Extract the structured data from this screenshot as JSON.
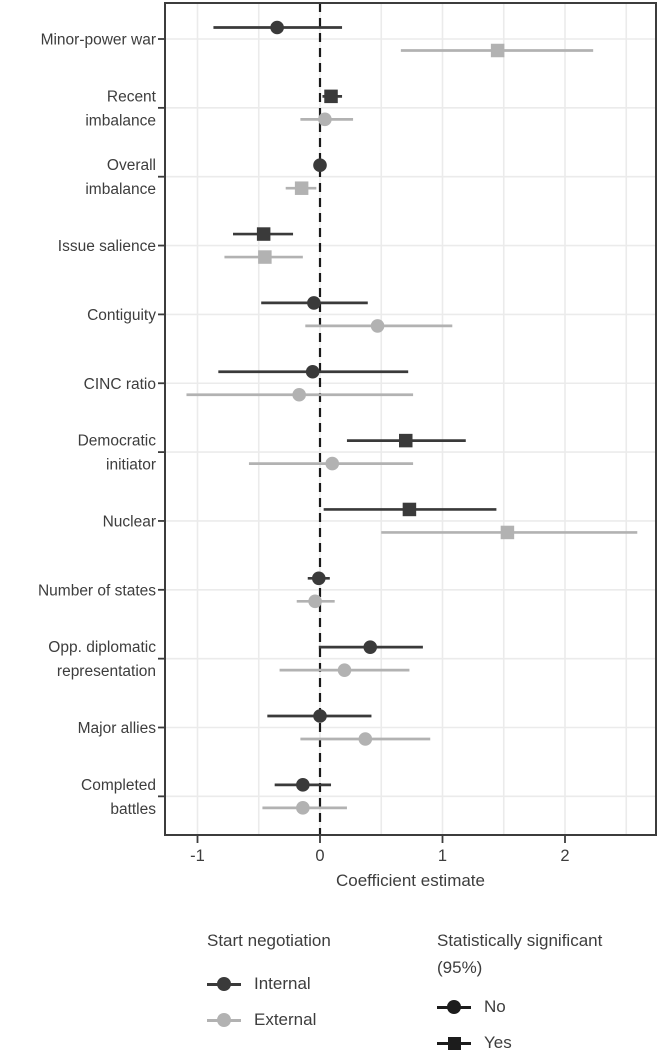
{
  "colors": {
    "internal": "#3a3a3a",
    "external": "#b2b2b2",
    "significant_black": "#1c1c1c",
    "gridline": "#ebebeb",
    "border": "#3c3c3c",
    "zero_line": "#1a1a1a",
    "text": "#3d3d3d"
  },
  "chart_data": {
    "type": "scatter",
    "subtype": "coefficient-dot-whisker-plot",
    "title": "",
    "xlabel": "Coefficient estimate",
    "ylabel": "",
    "xlim": [
      -1.27,
      2.75
    ],
    "xticks": [
      -1,
      0,
      1,
      2
    ],
    "xtick_labels": [
      "-1",
      "0",
      "1",
      "2"
    ],
    "grid_x_interval": 0.5,
    "grid": true,
    "zero_line": 0,
    "legend_position": "bottom",
    "categories": [
      "Minor-power war",
      "Recent\nimbalance",
      "Overall\nimbalance",
      "Issue salience",
      "Contiguity",
      "CINC ratio",
      "Democratic\ninitiator",
      "Nuclear",
      "Number of states",
      "Opp. diplomatic\nrepresentation",
      "Major allies",
      "Completed\nbattles"
    ],
    "series": [
      {
        "name": "Internal",
        "color_key": "internal",
        "points": [
          {
            "est": -0.35,
            "lo": -0.87,
            "hi": 0.18,
            "significant": false
          },
          {
            "est": 0.09,
            "lo": 0.02,
            "hi": 0.18,
            "significant": true
          },
          {
            "est": 0.0,
            "lo": -0.03,
            "hi": 0.03,
            "significant": false
          },
          {
            "est": -0.46,
            "lo": -0.71,
            "hi": -0.22,
            "significant": true
          },
          {
            "est": -0.05,
            "lo": -0.48,
            "hi": 0.39,
            "significant": false
          },
          {
            "est": -0.06,
            "lo": -0.83,
            "hi": 0.72,
            "significant": false
          },
          {
            "est": 0.7,
            "lo": 0.22,
            "hi": 1.19,
            "significant": true
          },
          {
            "est": 0.73,
            "lo": 0.03,
            "hi": 1.44,
            "significant": true
          },
          {
            "est": -0.01,
            "lo": -0.1,
            "hi": 0.08,
            "significant": false
          },
          {
            "est": 0.41,
            "lo": -0.01,
            "hi": 0.84,
            "significant": false
          },
          {
            "est": 0.0,
            "lo": -0.43,
            "hi": 0.42,
            "significant": false
          },
          {
            "est": -0.14,
            "lo": -0.37,
            "hi": 0.09,
            "significant": false
          }
        ]
      },
      {
        "name": "External",
        "color_key": "external",
        "points": [
          {
            "est": 1.45,
            "lo": 0.66,
            "hi": 2.23,
            "significant": true
          },
          {
            "est": 0.04,
            "lo": -0.16,
            "hi": 0.27,
            "significant": false
          },
          {
            "est": -0.15,
            "lo": -0.28,
            "hi": -0.03,
            "significant": true
          },
          {
            "est": -0.45,
            "lo": -0.78,
            "hi": -0.14,
            "significant": true
          },
          {
            "est": 0.47,
            "lo": -0.12,
            "hi": 1.08,
            "significant": false
          },
          {
            "est": -0.17,
            "lo": -1.09,
            "hi": 0.76,
            "significant": false
          },
          {
            "est": 0.1,
            "lo": -0.58,
            "hi": 0.76,
            "significant": false
          },
          {
            "est": 1.53,
            "lo": 0.5,
            "hi": 2.59,
            "significant": true
          },
          {
            "est": -0.04,
            "lo": -0.19,
            "hi": 0.12,
            "significant": false
          },
          {
            "est": 0.2,
            "lo": -0.33,
            "hi": 0.73,
            "significant": false
          },
          {
            "est": 0.37,
            "lo": -0.16,
            "hi": 0.9,
            "significant": false
          },
          {
            "est": -0.14,
            "lo": -0.47,
            "hi": 0.22,
            "significant": false
          }
        ]
      }
    ],
    "legends": [
      {
        "title": "Start negotiation",
        "items": [
          {
            "label": "Internal",
            "shape": "circle",
            "color_key": "internal"
          },
          {
            "label": "External",
            "shape": "circle",
            "color_key": "external"
          }
        ]
      },
      {
        "title": "Statistically significant (95%)",
        "items": [
          {
            "label": "No",
            "shape": "circle",
            "color_key": "significant_black"
          },
          {
            "label": "Yes",
            "shape": "square",
            "color_key": "significant_black"
          }
        ]
      }
    ]
  }
}
